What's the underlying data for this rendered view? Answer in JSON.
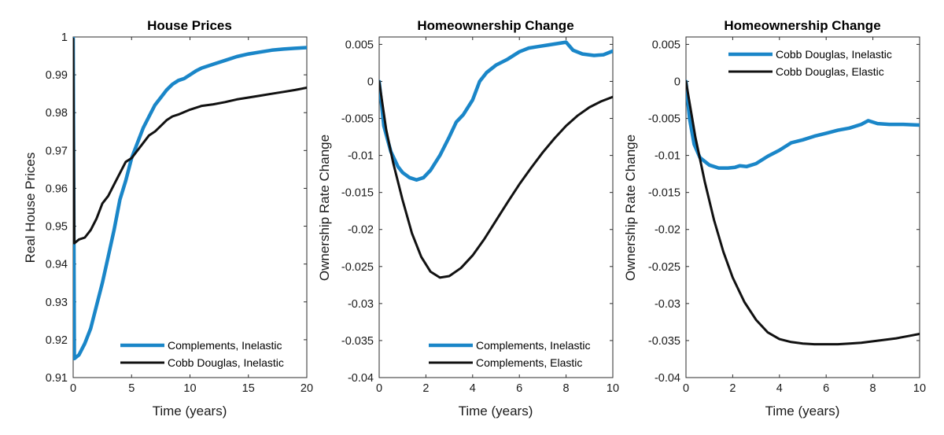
{
  "chart_data": [
    {
      "type": "line",
      "title": "House Prices",
      "xlabel": "Time (years)",
      "ylabel": "Real House Prices",
      "xlim": [
        0,
        20
      ],
      "ylim": [
        0.91,
        1
      ],
      "xticks": [
        0,
        5,
        10,
        15,
        20
      ],
      "yticks": [
        0.91,
        0.92,
        0.93,
        0.94,
        0.95,
        0.96,
        0.97,
        0.98,
        0.99,
        1
      ],
      "ytick_labels": [
        "0.91",
        "0.92",
        "0.93",
        "0.94",
        "0.95",
        "0.96",
        "0.97",
        "0.98",
        "0.99",
        "1"
      ],
      "legend_position": "bottom-right",
      "series": [
        {
          "name": "Complements, Inelastic",
          "color": "#1a86c8",
          "width": "thick",
          "points": [
            [
              0,
              1
            ],
            [
              0.1,
              0.915
            ],
            [
              0.5,
              0.916
            ],
            [
              1,
              0.919
            ],
            [
              1.5,
              0.923
            ],
            [
              2,
              0.929
            ],
            [
              2.5,
              0.935
            ],
            [
              3,
              0.942
            ],
            [
              3.5,
              0.949
            ],
            [
              4,
              0.957
            ],
            [
              4.5,
              0.962
            ],
            [
              5,
              0.968
            ],
            [
              5.5,
              0.972
            ],
            [
              6,
              0.976
            ],
            [
              6.5,
              0.979
            ],
            [
              7,
              0.982
            ],
            [
              7.5,
              0.984
            ],
            [
              8,
              0.986
            ],
            [
              8.5,
              0.9875
            ],
            [
              9,
              0.9885
            ],
            [
              9.5,
              0.989
            ],
            [
              10,
              0.99
            ],
            [
              10.5,
              0.991
            ],
            [
              11,
              0.9918
            ],
            [
              12,
              0.9928
            ],
            [
              13,
              0.9938
            ],
            [
              14,
              0.9948
            ],
            [
              15,
              0.9955
            ],
            [
              16,
              0.996
            ],
            [
              17,
              0.9965
            ],
            [
              18,
              0.9968
            ],
            [
              19,
              0.997
            ],
            [
              20,
              0.9972
            ]
          ]
        },
        {
          "name": "Cobb Douglas, Inelastic",
          "color": "#111111",
          "width": "normal",
          "points": [
            [
              0,
              0.9995
            ],
            [
              0.1,
              0.9455
            ],
            [
              0.5,
              0.9465
            ],
            [
              1,
              0.947
            ],
            [
              1.5,
              0.949
            ],
            [
              2,
              0.952
            ],
            [
              2.5,
              0.956
            ],
            [
              3,
              0.958
            ],
            [
              3.5,
              0.961
            ],
            [
              4,
              0.964
            ],
            [
              4.5,
              0.967
            ],
            [
              5,
              0.968
            ],
            [
              5.5,
              0.97
            ],
            [
              6,
              0.972
            ],
            [
              6.5,
              0.974
            ],
            [
              7,
              0.975
            ],
            [
              7.5,
              0.9765
            ],
            [
              8,
              0.978
            ],
            [
              8.5,
              0.979
            ],
            [
              9,
              0.9795
            ],
            [
              10,
              0.9808
            ],
            [
              11,
              0.9818
            ],
            [
              12,
              0.9822
            ],
            [
              13,
              0.9828
            ],
            [
              14,
              0.9835
            ],
            [
              15,
              0.984
            ],
            [
              16,
              0.9845
            ],
            [
              17,
              0.985
            ],
            [
              18,
              0.9855
            ],
            [
              19,
              0.986
            ],
            [
              20,
              0.9866
            ]
          ]
        }
      ]
    },
    {
      "type": "line",
      "title": "Homeownership Change",
      "xlabel": "Time (years)",
      "ylabel": "Ownership Rate Change",
      "xlim": [
        0,
        10
      ],
      "ylim": [
        -0.04,
        0.006
      ],
      "xticks": [
        0,
        2,
        4,
        6,
        8,
        10
      ],
      "yticks": [
        -0.04,
        -0.035,
        -0.03,
        -0.025,
        -0.02,
        -0.015,
        -0.01,
        -0.005,
        0,
        0.005
      ],
      "ytick_labels": [
        "-0.04",
        "-0.035",
        "-0.03",
        "-0.025",
        "-0.02",
        "-0.015",
        "-0.01",
        "-0.005",
        "0",
        "0.005"
      ],
      "legend_position": "bottom-right",
      "series": [
        {
          "name": "Complements, Inelastic",
          "color": "#1a86c8",
          "width": "thick",
          "points": [
            [
              0,
              0
            ],
            [
              0.2,
              -0.006
            ],
            [
              0.5,
              -0.0095
            ],
            [
              0.8,
              -0.0115
            ],
            [
              1,
              -0.0123
            ],
            [
              1.3,
              -0.013
            ],
            [
              1.6,
              -0.0133
            ],
            [
              1.9,
              -0.013
            ],
            [
              2.2,
              -0.012
            ],
            [
              2.6,
              -0.01
            ],
            [
              3,
              -0.0075
            ],
            [
              3.3,
              -0.0055
            ],
            [
              3.6,
              -0.0045
            ],
            [
              4,
              -0.0025
            ],
            [
              4.3,
              0
            ],
            [
              4.6,
              0.0012
            ],
            [
              5,
              0.0022
            ],
            [
              5.5,
              0.003
            ],
            [
              6,
              0.004
            ],
            [
              6.4,
              0.0045
            ],
            [
              6.8,
              0.0047
            ],
            [
              7.2,
              0.0049
            ],
            [
              7.6,
              0.0051
            ],
            [
              8,
              0.0053
            ],
            [
              8.3,
              0.0042
            ],
            [
              8.7,
              0.0037
            ],
            [
              9.2,
              0.0035
            ],
            [
              9.6,
              0.0036
            ],
            [
              10,
              0.0041
            ]
          ]
        },
        {
          "name": "Complements, Elastic",
          "color": "#111111",
          "width": "normal",
          "points": [
            [
              0,
              0
            ],
            [
              0.3,
              -0.0065
            ],
            [
              0.6,
              -0.011
            ],
            [
              1,
              -0.016
            ],
            [
              1.4,
              -0.0205
            ],
            [
              1.8,
              -0.0237
            ],
            [
              2.2,
              -0.0257
            ],
            [
              2.6,
              -0.0265
            ],
            [
              3,
              -0.0263
            ],
            [
              3.5,
              -0.0252
            ],
            [
              4,
              -0.0235
            ],
            [
              4.5,
              -0.0213
            ],
            [
              5,
              -0.0188
            ],
            [
              5.5,
              -0.0163
            ],
            [
              6,
              -0.0139
            ],
            [
              6.5,
              -0.0117
            ],
            [
              7,
              -0.0096
            ],
            [
              7.5,
              -0.0077
            ],
            [
              8,
              -0.006
            ],
            [
              8.5,
              -0.0046
            ],
            [
              9,
              -0.0035
            ],
            [
              9.5,
              -0.0027
            ],
            [
              10,
              -0.0021
            ]
          ]
        }
      ]
    },
    {
      "type": "line",
      "title": "Homeownership Change",
      "xlabel": "Time (years)",
      "ylabel": "Ownership Rate Change",
      "xlim": [
        0,
        10
      ],
      "ylim": [
        -0.04,
        0.006
      ],
      "xticks": [
        0,
        2,
        4,
        6,
        8,
        10
      ],
      "yticks": [
        -0.04,
        -0.035,
        -0.03,
        -0.025,
        -0.02,
        -0.015,
        -0.01,
        -0.005,
        0,
        0.005
      ],
      "ytick_labels": [
        "-0.04",
        "-0.035",
        "-0.03",
        "-0.025",
        "-0.02",
        "-0.015",
        "-0.01",
        "-0.005",
        "0",
        "0.005"
      ],
      "legend_position": "top-right",
      "series": [
        {
          "name": "Cobb Douglas, Inelastic",
          "color": "#1a86c8",
          "width": "thick",
          "points": [
            [
              0,
              0
            ],
            [
              0.15,
              -0.005
            ],
            [
              0.35,
              -0.0085
            ],
            [
              0.6,
              -0.0103
            ],
            [
              1,
              -0.0113
            ],
            [
              1.4,
              -0.0117
            ],
            [
              1.8,
              -0.0117
            ],
            [
              2.1,
              -0.0116
            ],
            [
              2.3,
              -0.0114
            ],
            [
              2.6,
              -0.0115
            ],
            [
              3,
              -0.0111
            ],
            [
              3.5,
              -0.0101
            ],
            [
              4,
              -0.0093
            ],
            [
              4.5,
              -0.0083
            ],
            [
              5,
              -0.0079
            ],
            [
              5.5,
              -0.0074
            ],
            [
              6,
              -0.007
            ],
            [
              6.5,
              -0.0066
            ],
            [
              7,
              -0.0063
            ],
            [
              7.5,
              -0.0058
            ],
            [
              7.8,
              -0.0053
            ],
            [
              8.2,
              -0.0057
            ],
            [
              8.7,
              -0.0058
            ],
            [
              9.3,
              -0.0058
            ],
            [
              10,
              -0.0059
            ]
          ]
        },
        {
          "name": "Cobb Douglas, Elastic",
          "color": "#111111",
          "width": "normal",
          "points": [
            [
              0,
              0
            ],
            [
              0.4,
              -0.0075
            ],
            [
              0.8,
              -0.0135
            ],
            [
              1.2,
              -0.0187
            ],
            [
              1.6,
              -0.023
            ],
            [
              2,
              -0.0265
            ],
            [
              2.5,
              -0.0298
            ],
            [
              3,
              -0.0322
            ],
            [
              3.5,
              -0.0339
            ],
            [
              4,
              -0.0348
            ],
            [
              4.5,
              -0.0352
            ],
            [
              5,
              -0.0354
            ],
            [
              5.5,
              -0.0355
            ],
            [
              6,
              -0.0355
            ],
            [
              6.5,
              -0.0355
            ],
            [
              7,
              -0.0354
            ],
            [
              7.5,
              -0.0353
            ],
            [
              8,
              -0.0351
            ],
            [
              8.5,
              -0.0349
            ],
            [
              9,
              -0.0347
            ],
            [
              9.5,
              -0.0344
            ],
            [
              10,
              -0.0341
            ]
          ]
        }
      ]
    }
  ]
}
